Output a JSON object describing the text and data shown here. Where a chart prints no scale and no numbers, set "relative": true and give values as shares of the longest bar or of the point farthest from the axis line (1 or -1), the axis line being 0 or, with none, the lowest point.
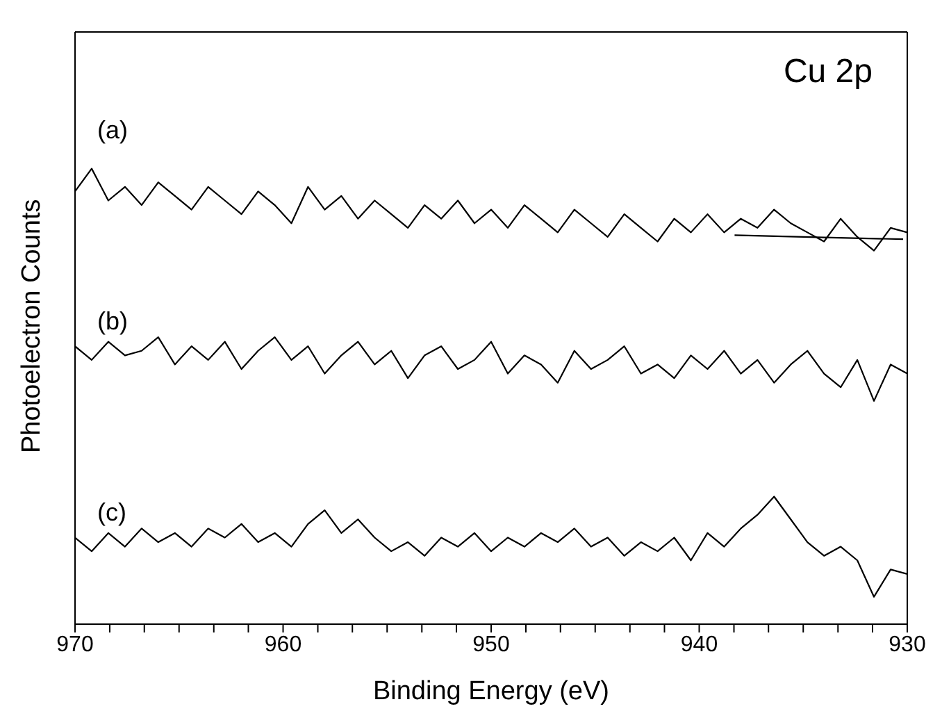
{
  "chart_data": {
    "type": "line",
    "title": "Cu 2p",
    "xlabel": "Binding Energy (eV)",
    "ylabel": "Photoelectron Counts",
    "relative": true,
    "xlim": [
      970,
      930
    ],
    "xticks": [
      970,
      {
        "value": 968.33,
        "label": null
      },
      {
        "value": 966.67,
        "label": null
      },
      {
        "value": 965,
        "label": null
      },
      {
        "value": 963.33,
        "label": null
      },
      {
        "value": 961.67,
        "label": null
      },
      960,
      {
        "value": 958.33,
        "label": null
      },
      {
        "value": 956.67,
        "label": null
      },
      {
        "value": 955,
        "label": null
      },
      {
        "value": 953.33,
        "label": null
      },
      {
        "value": 951.67,
        "label": null
      },
      950,
      {
        "value": 948.33,
        "label": null
      },
      {
        "value": 946.67,
        "label": null
      },
      {
        "value": 945,
        "label": null
      },
      {
        "value": 943.33,
        "label": null
      },
      {
        "value": 941.67,
        "label": null
      },
      940,
      {
        "value": 938.33,
        "label": null
      },
      {
        "value": 936.67,
        "label": null
      },
      {
        "value": 935,
        "label": null
      },
      {
        "value": 933.33,
        "label": null
      },
      {
        "value": 931.67,
        "label": null
      },
      930
    ],
    "x": [
      970,
      969.2,
      968.4,
      967.6,
      966.8,
      966,
      965.2,
      964.4,
      963.6,
      962.8,
      962,
      961.2,
      960.4,
      959.6,
      958.8,
      958,
      957.2,
      956.4,
      955.6,
      954.8,
      954,
      953.2,
      952.4,
      951.6,
      950.8,
      950,
      949.2,
      948.4,
      947.6,
      946.8,
      946,
      945.2,
      944.4,
      943.6,
      942.8,
      942,
      941.2,
      940.4,
      939.6,
      938.8,
      938,
      937.2,
      936.4,
      935.6,
      934.8,
      934,
      933.2,
      932.4,
      931.6,
      930.8,
      930
    ],
    "series": [
      {
        "name": "(a)",
        "color": "#000000",
        "values": [
          0.95,
          1.0,
          0.93,
          0.96,
          0.92,
          0.97,
          0.94,
          0.91,
          0.96,
          0.93,
          0.9,
          0.95,
          0.92,
          0.88,
          0.96,
          0.91,
          0.94,
          0.89,
          0.93,
          0.9,
          0.87,
          0.92,
          0.89,
          0.93,
          0.88,
          0.91,
          0.87,
          0.92,
          0.89,
          0.86,
          0.91,
          0.88,
          0.85,
          0.9,
          0.87,
          0.84,
          0.89,
          0.86,
          0.9,
          0.86,
          0.89,
          0.87,
          0.91,
          0.88,
          0.86,
          0.84,
          0.89,
          0.85,
          0.82,
          0.87,
          0.86
        ]
      },
      {
        "name": "(b)",
        "color": "#000000",
        "values": [
          0.61,
          0.58,
          0.62,
          0.59,
          0.6,
          0.63,
          0.57,
          0.61,
          0.58,
          0.62,
          0.56,
          0.6,
          0.63,
          0.58,
          0.61,
          0.55,
          0.59,
          0.62,
          0.57,
          0.6,
          0.54,
          0.59,
          0.61,
          0.56,
          0.58,
          0.62,
          0.55,
          0.59,
          0.57,
          0.53,
          0.6,
          0.56,
          0.58,
          0.61,
          0.55,
          0.57,
          0.54,
          0.59,
          0.56,
          0.6,
          0.55,
          0.58,
          0.53,
          0.57,
          0.6,
          0.55,
          0.52,
          0.58,
          0.49,
          0.57,
          0.55
        ]
      },
      {
        "name": "(c)",
        "color": "#000000",
        "values": [
          0.19,
          0.16,
          0.2,
          0.17,
          0.21,
          0.18,
          0.2,
          0.17,
          0.21,
          0.19,
          0.22,
          0.18,
          0.2,
          0.17,
          0.22,
          0.25,
          0.2,
          0.23,
          0.19,
          0.16,
          0.18,
          0.15,
          0.19,
          0.17,
          0.2,
          0.16,
          0.19,
          0.17,
          0.2,
          0.18,
          0.21,
          0.17,
          0.19,
          0.15,
          0.18,
          0.16,
          0.19,
          0.14,
          0.2,
          0.17,
          0.21,
          0.24,
          0.28,
          0.23,
          0.18,
          0.15,
          0.17,
          0.14,
          0.06,
          0.12,
          0.11
        ]
      },
      {
        "color": "#000000",
        "x": [
          938.3,
          934,
          930.2
        ],
        "values": [
          0.854,
          0.849,
          0.845
        ]
      }
    ]
  }
}
